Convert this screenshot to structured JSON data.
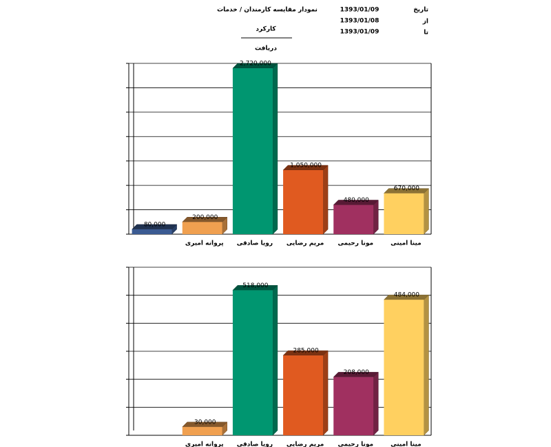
{
  "header": {
    "title": "نمودار مقایسه کارمندان  /  خدمات",
    "date_label": "تاریخ",
    "date": "1393/01/09",
    "from_label": "از",
    "from": "1393/01/08",
    "to_label": "تا",
    "to": "1393/01/09",
    "measure1": "کارکرد",
    "measure2": "دریافت"
  },
  "chart_data": [
    {
      "type": "bar3d",
      "categories": [
        null,
        "پروانه امیری",
        "رویا صادقی",
        "مریم رضایی",
        "مونا رحیمی",
        "مینا امینی"
      ],
      "values": [
        80000,
        200000,
        2720000,
        1050000,
        480000,
        670000
      ],
      "value_labels": [
        "80,000",
        "200,000",
        "2,720,000",
        "1,050,000",
        "480,000",
        "670,000"
      ],
      "colors": [
        "#3b5b92",
        "#f0a050",
        "#009670",
        "#e05a20",
        "#a03060",
        "#ffd060"
      ],
      "ylim": [
        0,
        2800000
      ],
      "yticks": [
        0,
        400000,
        800000,
        1200000,
        1600000,
        2000000,
        2400000,
        2800000
      ],
      "grid": true
    },
    {
      "type": "bar3d",
      "categories": [
        null,
        "پروانه امیری",
        "رویا صادقی",
        "مریم رضایی",
        "مونا رحیمی",
        "مینا امینی"
      ],
      "values": [
        null,
        30000,
        518000,
        285000,
        208000,
        484000
      ],
      "value_labels": [
        null,
        "30,000",
        "518,000",
        "285,000",
        "208,000",
        "484,000"
      ],
      "colors": [
        "#3b5b92",
        "#f0a050",
        "#009670",
        "#e05a20",
        "#a03060",
        "#ffd060"
      ],
      "ylim": [
        0,
        600000
      ],
      "yticks": [
        0,
        100000,
        200000,
        300000,
        400000,
        500000,
        600000
      ],
      "grid": true
    }
  ]
}
